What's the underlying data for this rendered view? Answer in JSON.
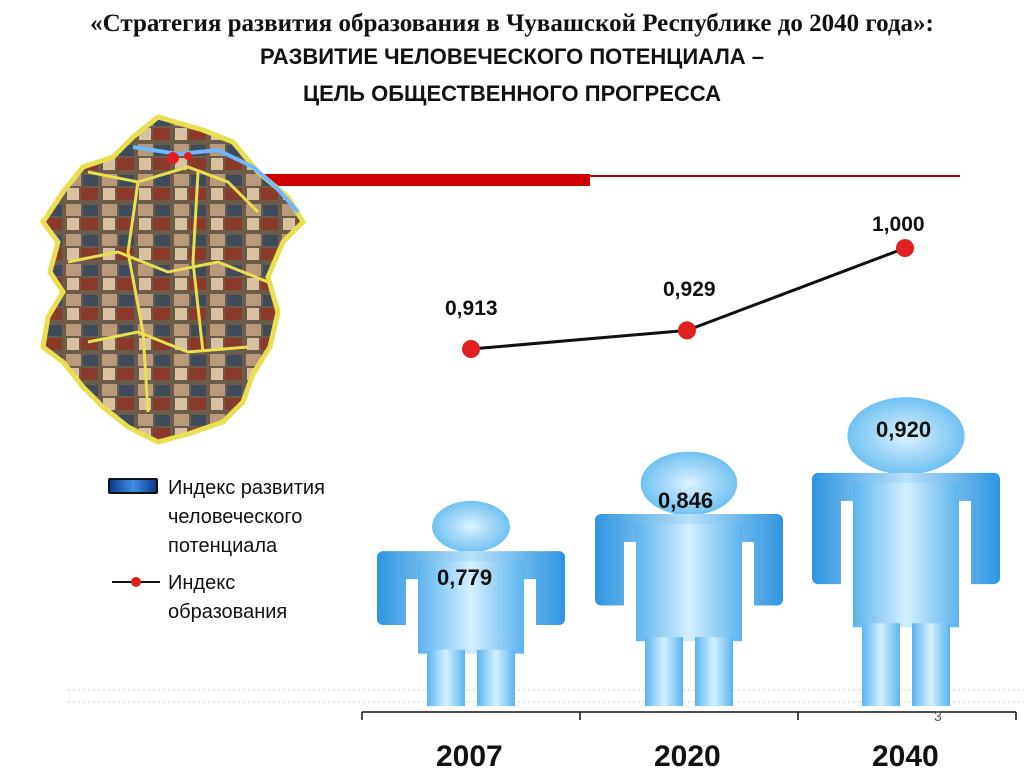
{
  "header": {
    "title": "«Стратегия развития образования в Чувашской Республике до 2040 года»:",
    "subtitle_line1": "РАЗВИТИЕ ЧЕЛОВЕЧЕСКОГО ПОТЕНЦИАЛА –",
    "subtitle_line2": "ЦЕЛЬ ОБЩЕСТВЕННОГО ПРОГРЕССА"
  },
  "legend": {
    "hdi_label_1": "Индекс развития",
    "hdi_label_2": "человеческого",
    "hdi_label_3": "потенциала",
    "edu_label_1": "Индекс",
    "edu_label_2": "образования"
  },
  "chart_data": {
    "type": "bar",
    "categories": [
      "2007",
      "2020",
      "2040"
    ],
    "series": [
      {
        "name": "Индекс развития человеческого потенциала",
        "values": [
          0.779,
          0.846,
          0.92
        ],
        "labels": [
          "0,779",
          "0,846",
          "0,920"
        ],
        "style": "human-figure bars",
        "color": "#3aa8ee"
      },
      {
        "name": "Индекс образования",
        "values": [
          0.913,
          0.929,
          1.0
        ],
        "labels": [
          "0,913",
          "0,929",
          "1,000"
        ],
        "style": "line with red markers",
        "color": "#e02020"
      }
    ],
    "grid": false,
    "legend_position": "left"
  },
  "colors": {
    "accent_red": "#cc0000",
    "figure_blue": "#3aa8ee",
    "line": "#111111"
  },
  "page_number": "3"
}
